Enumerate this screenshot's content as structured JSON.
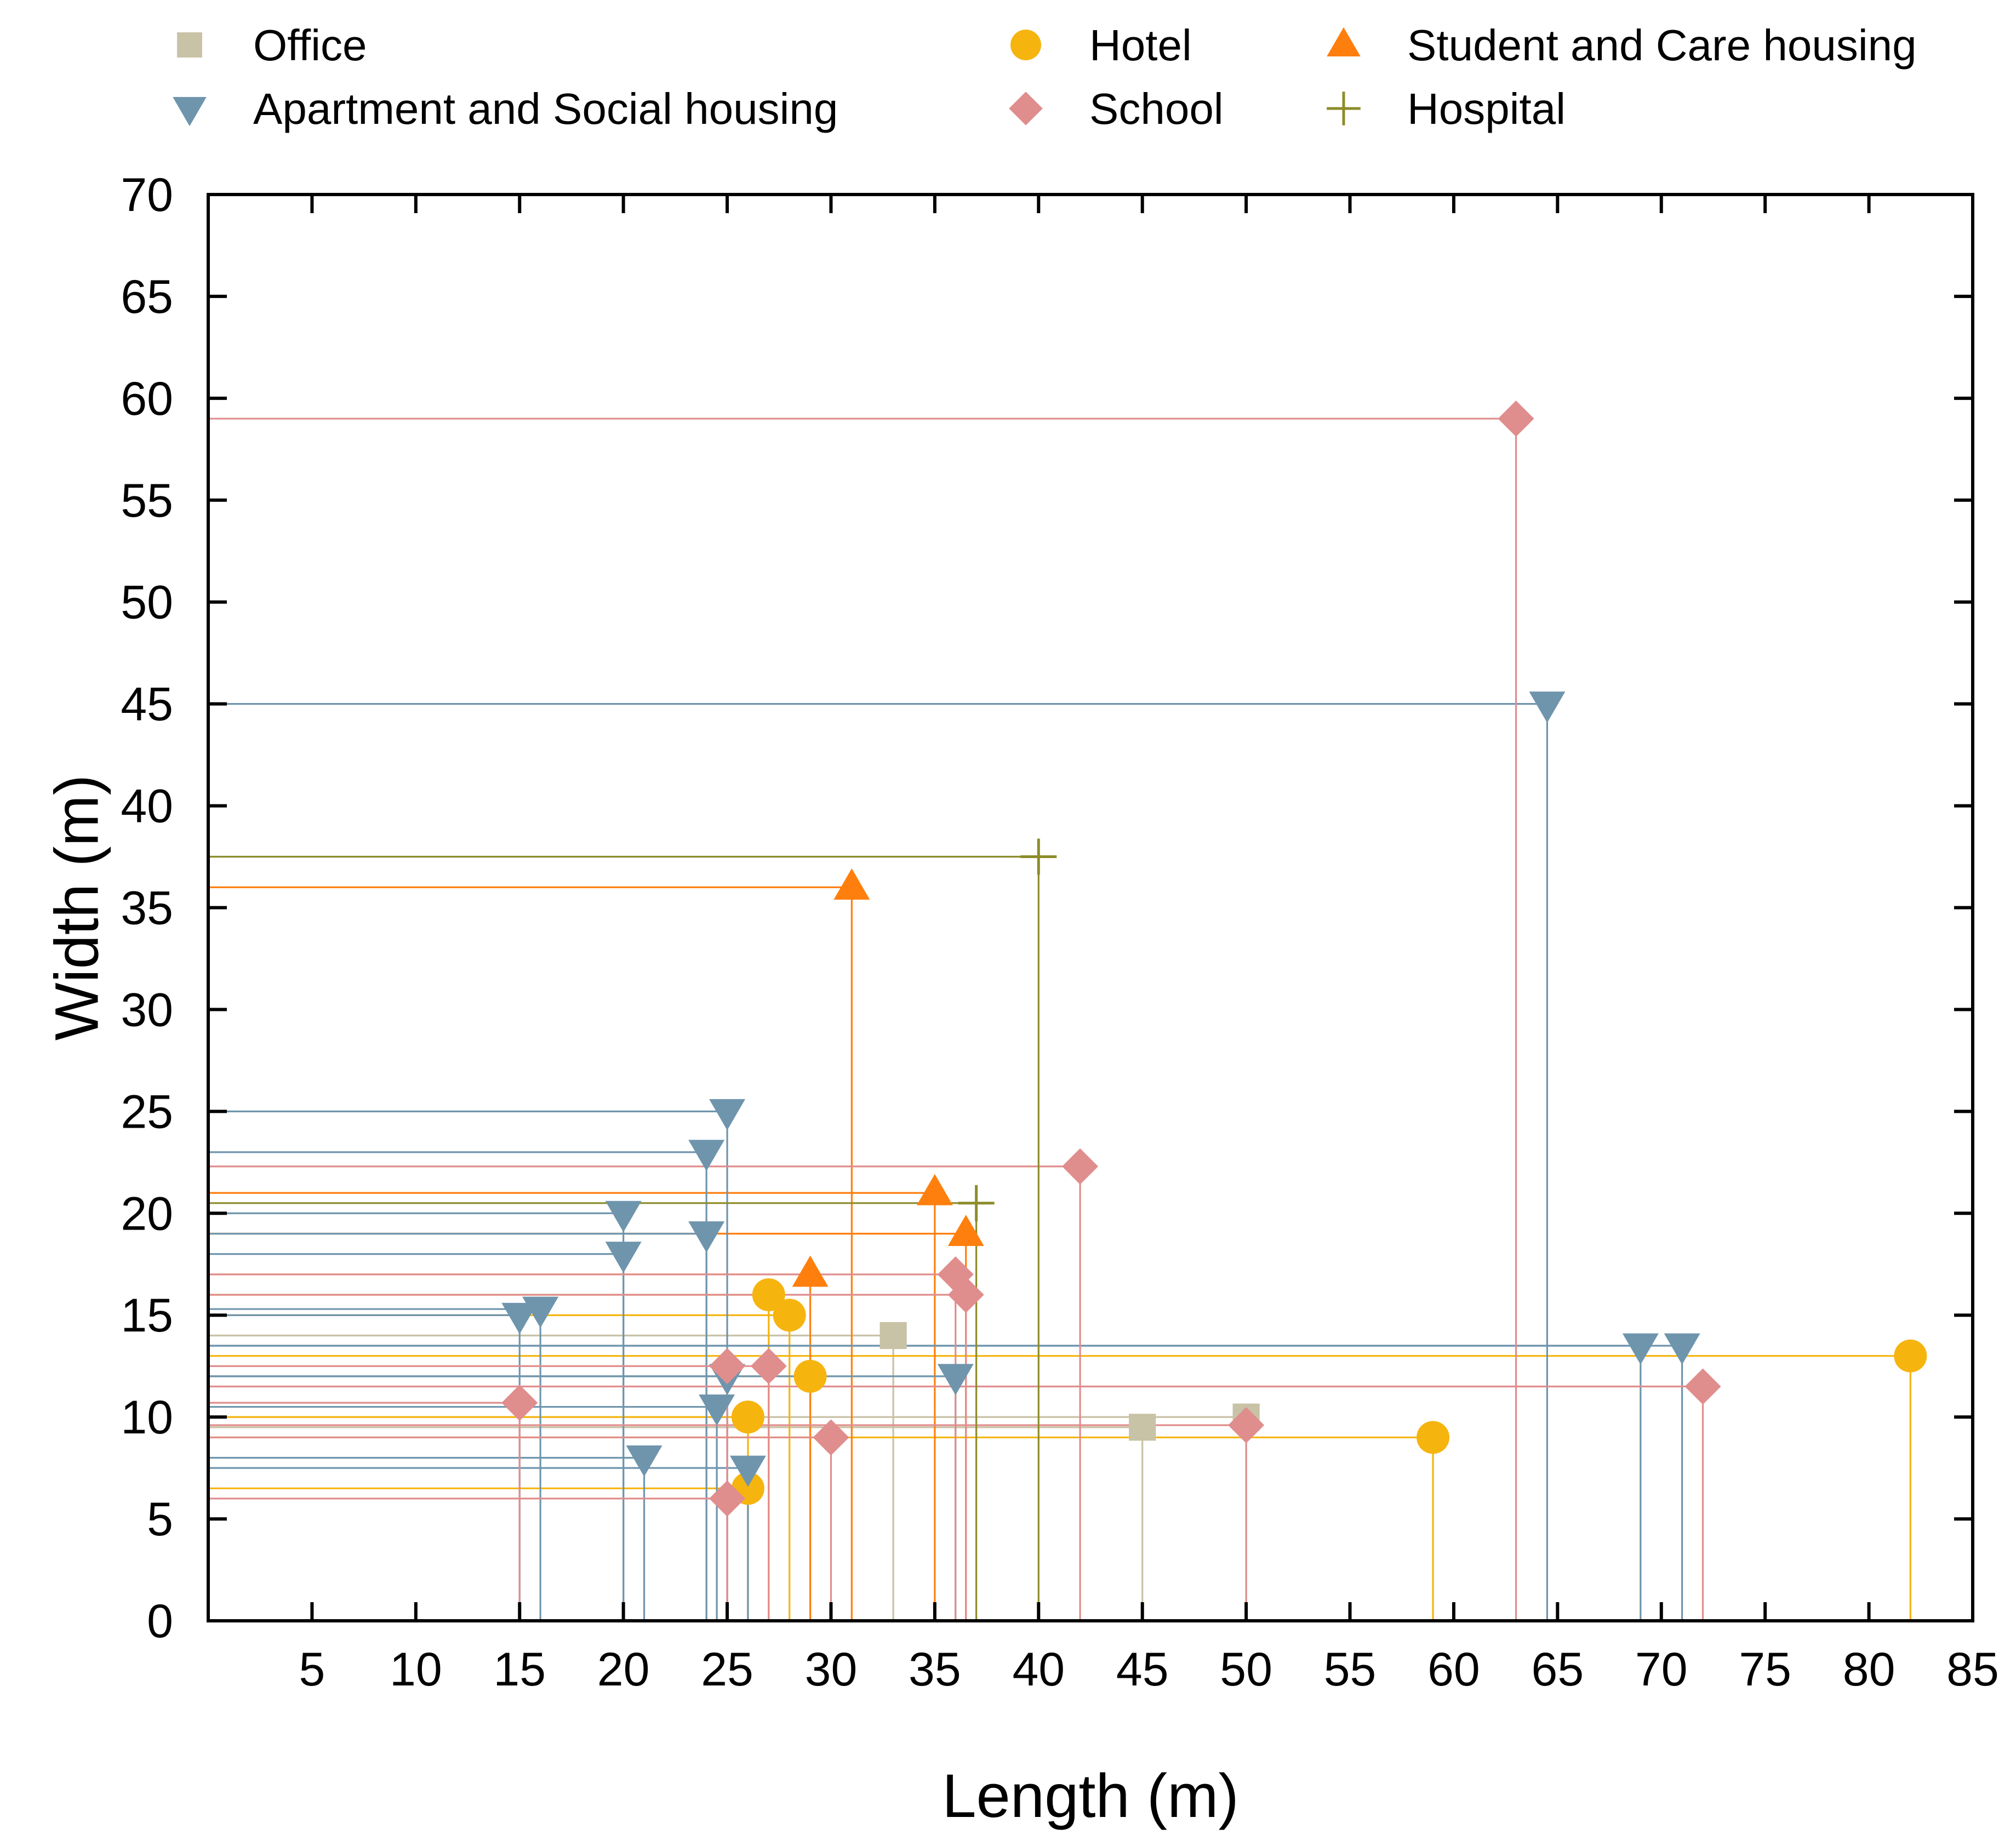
{
  "chart_data": {
    "type": "scatter",
    "title": "",
    "xlabel": "Length (m)",
    "ylabel": "Width (m)",
    "xlim": [
      0,
      85
    ],
    "ylim": [
      0,
      70
    ],
    "xticks": [
      5,
      10,
      15,
      20,
      25,
      30,
      35,
      40,
      45,
      50,
      55,
      60,
      65,
      70,
      75,
      80,
      85
    ],
    "yticks": [
      0,
      5,
      10,
      15,
      20,
      25,
      30,
      35,
      40,
      45,
      50,
      55,
      60,
      65,
      70
    ],
    "drop_lines": true,
    "legend_position": "top",
    "series": [
      {
        "name": "Office",
        "marker": "square",
        "color": "#c8c2a6",
        "points": [
          [
            33,
            14
          ],
          [
            45,
            9.5
          ],
          [
            50,
            10
          ]
        ]
      },
      {
        "name": "Hotel",
        "marker": "circle",
        "color": "#f6b40e",
        "points": [
          [
            27,
            16
          ],
          [
            28,
            15
          ],
          [
            29,
            12
          ],
          [
            26,
            10
          ],
          [
            26,
            6.5
          ],
          [
            59,
            9
          ],
          [
            82,
            13
          ]
        ]
      },
      {
        "name": "Student and Care housing",
        "marker": "triangle-up",
        "color": "#ff7f0e",
        "points": [
          [
            31,
            36
          ],
          [
            35,
            21
          ],
          [
            36.5,
            19
          ],
          [
            29,
            17
          ]
        ]
      },
      {
        "name": "Apartment and Social housing",
        "marker": "triangle-down",
        "color": "#6f95ad",
        "points": [
          [
            25,
            25
          ],
          [
            24,
            23
          ],
          [
            20,
            20
          ],
          [
            24,
            19
          ],
          [
            20,
            18
          ],
          [
            15,
            15
          ],
          [
            16,
            15.3
          ],
          [
            25,
            12
          ],
          [
            24.5,
            10.5
          ],
          [
            21,
            8
          ],
          [
            26,
            7.5
          ],
          [
            36,
            12
          ],
          [
            64.5,
            45
          ],
          [
            69,
            13.5
          ],
          [
            71,
            13.5
          ]
        ]
      },
      {
        "name": "School",
        "marker": "diamond",
        "color": "#e08d8d",
        "points": [
          [
            63,
            59
          ],
          [
            42,
            22.3
          ],
          [
            36,
            17
          ],
          [
            36.5,
            16
          ],
          [
            25,
            12.5
          ],
          [
            27,
            12.5
          ],
          [
            15,
            10.7
          ],
          [
            30,
            9
          ],
          [
            25,
            6
          ],
          [
            50,
            9.6
          ],
          [
            72,
            11.5
          ]
        ]
      },
      {
        "name": "Hospital",
        "marker": "plus",
        "color": "#8c8c2a",
        "points": [
          [
            40,
            37.5
          ],
          [
            37,
            20.5
          ]
        ]
      }
    ]
  }
}
